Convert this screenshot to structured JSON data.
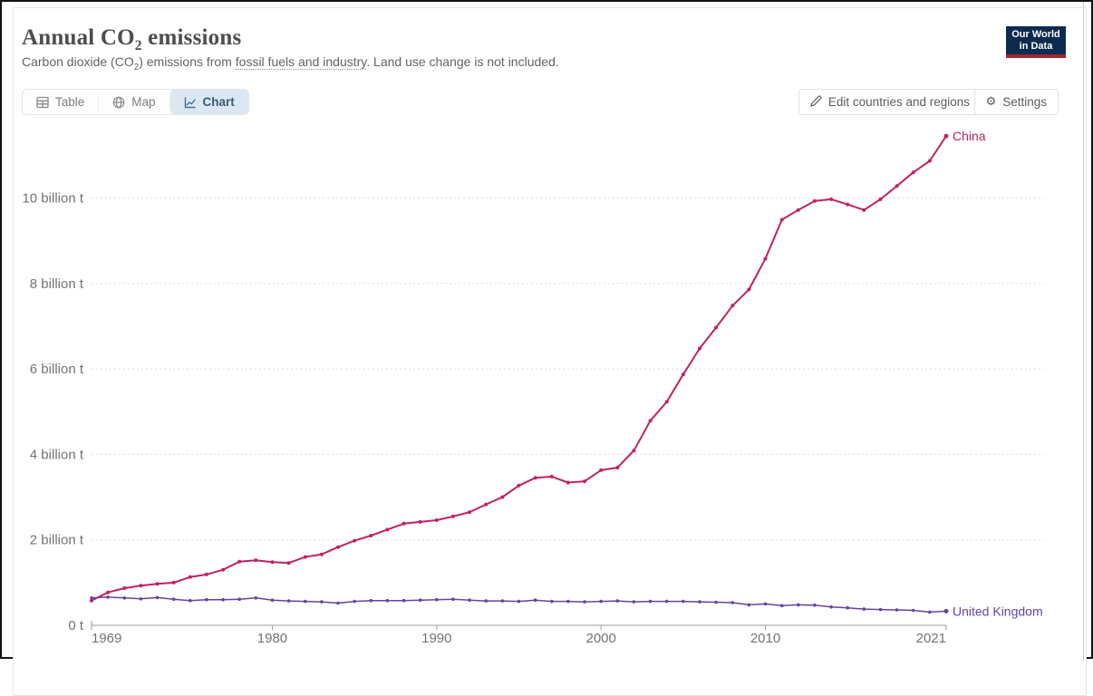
{
  "header": {
    "title": {
      "pre": "Annual CO",
      "sub": "2",
      "post": " emissions"
    },
    "subtitle": {
      "pre": "Carbon dioxide (CO",
      "sub": "2",
      "mid": ") emissions from ",
      "link": "fossil fuels and industry",
      "post": ". Land use change is not included."
    },
    "logo": {
      "line1": "Our World",
      "line2": "in Data"
    }
  },
  "toolbar": {
    "tabs": [
      {
        "label": "Table",
        "icon": "table-icon",
        "active": false
      },
      {
        "label": "Map",
        "icon": "globe-icon",
        "active": false
      },
      {
        "label": "Chart",
        "icon": "line-chart-icon",
        "active": true
      }
    ],
    "edit_button": {
      "label": "Edit countries and regions",
      "icon": "pencil-icon"
    },
    "settings_button": {
      "label": "Settings",
      "icon": "gear-icon"
    }
  },
  "colors": {
    "china_line": "#be2364",
    "uk_line": "#65469b",
    "axis_text": "#737373",
    "gridline": "#dcdcdc",
    "axis_line": "#9e9e9e",
    "tab_active_bg": "#dbe7f2",
    "logo_bg": "#0d2b4e",
    "logo_bar": "#a0262d"
  },
  "chart_data": {
    "type": "line",
    "x": [
      1969,
      1970,
      1971,
      1972,
      1973,
      1974,
      1975,
      1976,
      1977,
      1978,
      1979,
      1980,
      1981,
      1982,
      1983,
      1984,
      1985,
      1986,
      1987,
      1988,
      1989,
      1990,
      1991,
      1992,
      1993,
      1994,
      1995,
      1996,
      1997,
      1998,
      1999,
      2000,
      2001,
      2002,
      2003,
      2004,
      2005,
      2006,
      2007,
      2008,
      2009,
      2010,
      2011,
      2012,
      2013,
      2014,
      2015,
      2016,
      2017,
      2018,
      2019,
      2020,
      2021
    ],
    "series": [
      {
        "name": "China",
        "color": "#be2364",
        "unit": "billion t",
        "values": [
          0.58,
          0.77,
          0.87,
          0.93,
          0.97,
          1.0,
          1.13,
          1.19,
          1.3,
          1.49,
          1.52,
          1.48,
          1.46,
          1.6,
          1.66,
          1.83,
          1.98,
          2.1,
          2.24,
          2.38,
          2.42,
          2.46,
          2.55,
          2.65,
          2.83,
          3.0,
          3.27,
          3.45,
          3.48,
          3.34,
          3.37,
          3.63,
          3.69,
          4.09,
          4.79,
          5.23,
          5.87,
          6.48,
          6.97,
          7.48,
          7.86,
          8.58,
          9.49,
          9.72,
          9.93,
          9.97,
          9.85,
          9.72,
          9.97,
          10.28,
          10.6,
          10.87,
          11.45
        ]
      },
      {
        "name": "United Kingdom",
        "color": "#65469b",
        "unit": "billion t",
        "values": [
          0.64,
          0.66,
          0.64,
          0.62,
          0.65,
          0.61,
          0.58,
          0.6,
          0.6,
          0.61,
          0.64,
          0.59,
          0.57,
          0.56,
          0.55,
          0.52,
          0.56,
          0.58,
          0.58,
          0.58,
          0.59,
          0.6,
          0.61,
          0.59,
          0.57,
          0.57,
          0.56,
          0.59,
          0.56,
          0.56,
          0.55,
          0.56,
          0.57,
          0.55,
          0.56,
          0.56,
          0.56,
          0.55,
          0.54,
          0.53,
          0.48,
          0.5,
          0.46,
          0.48,
          0.47,
          0.43,
          0.41,
          0.38,
          0.37,
          0.36,
          0.35,
          0.31,
          0.33
        ]
      }
    ],
    "xlim": [
      1969,
      2021
    ],
    "ylim": [
      0,
      11.8
    ],
    "xticks": [
      1969,
      1980,
      1990,
      2000,
      2010,
      2021
    ],
    "yticks": [
      {
        "value": 0,
        "label": "0 t"
      },
      {
        "value": 2,
        "label": "2 billion t"
      },
      {
        "value": 4,
        "label": "4 billion t"
      },
      {
        "value": 6,
        "label": "6 billion t"
      },
      {
        "value": 8,
        "label": "8 billion t"
      },
      {
        "value": 10,
        "label": "10 billion t"
      }
    ],
    "grid": "dashed-horizontal",
    "legend_position": "line-end-labels"
  }
}
